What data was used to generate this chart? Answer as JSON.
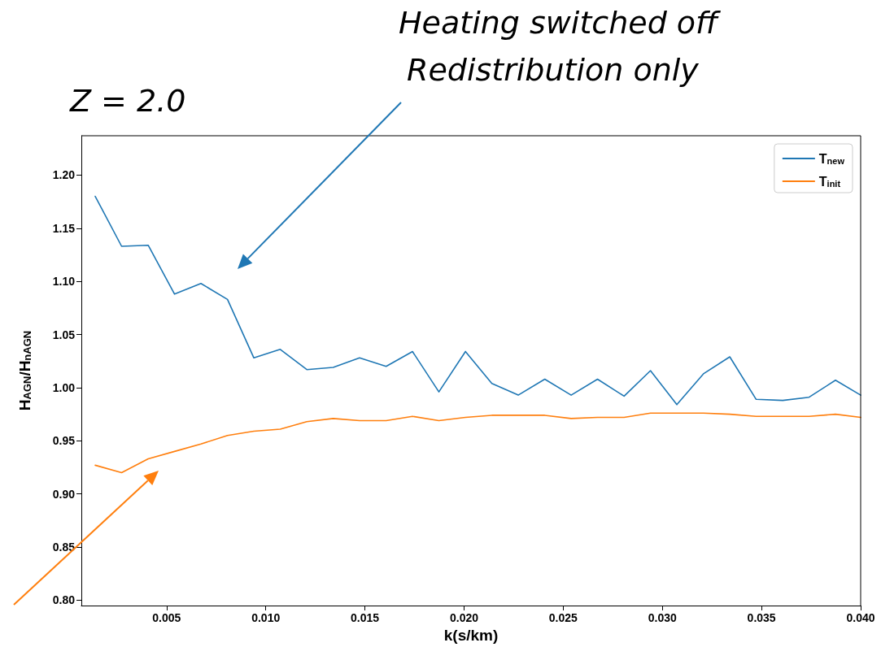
{
  "chart_data": {
    "type": "line",
    "xlabel": "k(s/km)",
    "ylabel": "H$_{AGN}$/H$_{nAGN}$",
    "annotations": [
      "Heating switched off",
      "Redistribution only",
      "Z = 2.0"
    ],
    "x": [
      0.0014,
      0.00273,
      0.00407,
      0.0054,
      0.00673,
      0.00807,
      0.0094,
      0.01073,
      0.01207,
      0.0134,
      0.01473,
      0.01607,
      0.0174,
      0.01873,
      0.02007,
      0.0214,
      0.02273,
      0.02407,
      0.0254,
      0.02673,
      0.02807,
      0.0294,
      0.03073,
      0.03207,
      0.0334,
      0.03473,
      0.03607,
      0.0374,
      0.03873,
      0.04
    ],
    "series": [
      {
        "name": "T$_{new}$",
        "color": "#1f77b4",
        "values": [
          1.18,
          1.133,
          1.134,
          1.088,
          1.098,
          1.083,
          1.028,
          1.036,
          1.017,
          1.019,
          1.028,
          1.02,
          1.034,
          0.996,
          1.034,
          1.004,
          0.993,
          1.008,
          0.993,
          1.008,
          0.992,
          1.016,
          0.984,
          1.013,
          1.029,
          0.989,
          0.988,
          0.991,
          1.007,
          0.993
        ]
      },
      {
        "name": "T$_{init}$",
        "color": "#ff7f0e",
        "values": [
          0.927,
          0.92,
          0.933,
          0.94,
          0.947,
          0.955,
          0.959,
          0.961,
          0.968,
          0.971,
          0.969,
          0.969,
          0.973,
          0.969,
          0.972,
          0.974,
          0.974,
          0.974,
          0.971,
          0.972,
          0.972,
          0.976,
          0.976,
          0.976,
          0.975,
          0.973,
          0.973,
          0.973,
          0.975,
          0.972
        ]
      }
    ],
    "xlim": [
      0.0007,
      0.04
    ],
    "ylim": [
      0.795,
      1.237
    ],
    "xticks": [
      {
        "value": 0.005,
        "label": "0.005"
      },
      {
        "value": 0.01,
        "label": "0.010"
      },
      {
        "value": 0.015,
        "label": "0.015"
      },
      {
        "value": 0.02,
        "label": "0.020"
      },
      {
        "value": 0.025,
        "label": "0.025"
      },
      {
        "value": 0.03,
        "label": "0.030"
      },
      {
        "value": 0.035,
        "label": "0.035"
      },
      {
        "value": 0.04,
        "label": "0.040"
      }
    ],
    "yticks": [
      {
        "value": 0.8,
        "label": "0.80"
      },
      {
        "value": 0.85,
        "label": "0.85"
      },
      {
        "value": 0.9,
        "label": "0.90"
      },
      {
        "value": 0.95,
        "label": "0.95"
      },
      {
        "value": 1.0,
        "label": "1.00"
      },
      {
        "value": 1.05,
        "label": "1.05"
      },
      {
        "value": 1.1,
        "label": "1.10"
      },
      {
        "value": 1.15,
        "label": "1.15"
      },
      {
        "value": 1.2,
        "label": "1.20"
      }
    ],
    "grid": false,
    "legend": "top right",
    "marker": "none",
    "line_style": "solid"
  }
}
